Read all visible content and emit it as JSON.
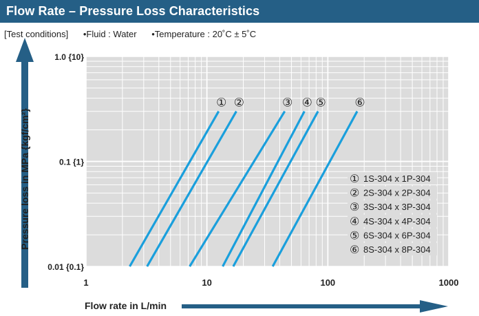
{
  "header": {
    "title": "Flow Rate – Pressure Loss Characteristics"
  },
  "conditions": {
    "label": "[Test conditions]",
    "items": [
      "•Fluid : Water",
      "•Temperature : 20˚C ± 5˚C"
    ]
  },
  "colors": {
    "header_bg": "#255f86",
    "arrow": "#255f86",
    "plot_bg": "#dcdcdc",
    "grid": "#ffffff",
    "series_line": "#1a9fdc"
  },
  "chart_data": {
    "type": "line",
    "title": "",
    "xlabel": "Flow rate in L/min",
    "ylabel": "Pressure loss in MPa {kgf/cm²}",
    "x_scale": "log",
    "y_scale": "log",
    "xlim": [
      1,
      1000
    ],
    "ylim": [
      0.01,
      1.0
    ],
    "grid": true,
    "legend_position": "bottom-right",
    "x_ticks": [
      {
        "value": 1,
        "label": "1"
      },
      {
        "value": 10,
        "label": "10"
      },
      {
        "value": 100,
        "label": "100"
      },
      {
        "value": 1000,
        "label": "1000"
      }
    ],
    "y_ticks": [
      {
        "value": 1.0,
        "label": "1.0 {10}"
      },
      {
        "value": 0.1,
        "label": "0.1 {1}"
      },
      {
        "value": 0.01,
        "label": "0.01 {0.1}"
      }
    ],
    "series": [
      {
        "marker": "①",
        "name": "1S-304 x 1P-304",
        "x": [
          2.3,
          12.5
        ],
        "y": [
          0.01,
          0.3
        ]
      },
      {
        "marker": "②",
        "name": "2S-304 x 2P-304",
        "x": [
          3.2,
          17.5
        ],
        "y": [
          0.01,
          0.3
        ]
      },
      {
        "marker": "③",
        "name": "3S-304 x 3P-304",
        "x": [
          7.2,
          44
        ],
        "y": [
          0.01,
          0.3
        ]
      },
      {
        "marker": "④",
        "name": "4S-304 x 4P-304",
        "x": [
          13.5,
          64
        ],
        "y": [
          0.01,
          0.3
        ]
      },
      {
        "marker": "⑤",
        "name": "6S-304 x 6P-304",
        "x": [
          16.5,
          83
        ],
        "y": [
          0.01,
          0.3
        ]
      },
      {
        "marker": "⑥",
        "name": "8S-304 x 8P-304",
        "x": [
          35,
          175
        ],
        "y": [
          0.01,
          0.3
        ]
      }
    ]
  }
}
